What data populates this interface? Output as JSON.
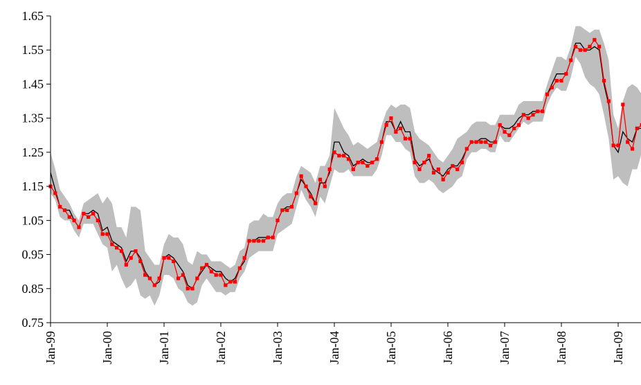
{
  "chart_data": {
    "type": "line",
    "title": "",
    "xlabel": "",
    "ylabel": "",
    "ylim": [
      0.75,
      1.65
    ],
    "yticks": [
      "1.65",
      "1.55",
      "1.45",
      "1.35",
      "1.25",
      "1.15",
      "1.05",
      "0.95",
      "0.85",
      "0.75"
    ],
    "ytick_values": [
      1.65,
      1.55,
      1.45,
      1.35,
      1.25,
      1.15,
      1.05,
      0.95,
      0.85,
      0.75
    ],
    "xticks": [
      "Jan-99",
      "Jan-00",
      "Jan-01",
      "Jan-02",
      "Jan-03",
      "Jan-04",
      "Jan-05",
      "Jan-06",
      "Jan-07",
      "Jan-08",
      "Jan-09"
    ],
    "x_start": "Jan-99",
    "x_end": "Jun-09",
    "grid": false,
    "legend": "none",
    "colors": {
      "band": "#bebebe",
      "line": "#000000",
      "marker_series": "#ff0000"
    },
    "series": [
      {
        "role": "black-line",
        "values": [
          1.19,
          1.14,
          1.09,
          1.08,
          1.08,
          1.05,
          1.03,
          1.07,
          1.07,
          1.08,
          1.07,
          1.02,
          1.03,
          0.99,
          0.98,
          0.97,
          0.93,
          0.96,
          0.96,
          0.94,
          0.9,
          0.88,
          0.86,
          0.87,
          0.94,
          0.95,
          0.94,
          0.92,
          0.9,
          0.86,
          0.85,
          0.88,
          0.9,
          0.92,
          0.91,
          0.9,
          0.9,
          0.88,
          0.87,
          0.88,
          0.91,
          0.93,
          0.99,
          0.99,
          1.0,
          1.0,
          1.0,
          1.0,
          1.05,
          1.08,
          1.09,
          1.09,
          1.13,
          1.17,
          1.15,
          1.13,
          1.1,
          1.16,
          1.16,
          1.19,
          1.28,
          1.28,
          1.25,
          1.24,
          1.21,
          1.22,
          1.23,
          1.22,
          1.22,
          1.23,
          1.28,
          1.34,
          1.34,
          1.31,
          1.34,
          1.31,
          1.31,
          1.23,
          1.21,
          1.22,
          1.23,
          1.2,
          1.19,
          1.18,
          1.2,
          1.21,
          1.21,
          1.23,
          1.26,
          1.28,
          1.28,
          1.29,
          1.29,
          1.28,
          1.28,
          1.33,
          1.32,
          1.32,
          1.33,
          1.35,
          1.36,
          1.36,
          1.37,
          1.37,
          1.37,
          1.42,
          1.45,
          1.48,
          1.48,
          1.48,
          1.52,
          1.57,
          1.57,
          1.55,
          1.55,
          1.56,
          1.55,
          1.45,
          1.39,
          1.27,
          1.25,
          1.31,
          1.29,
          1.28,
          1.32,
          1.32,
          1.38
        ]
      },
      {
        "role": "red-markers",
        "values": [
          1.15,
          1.13,
          1.09,
          1.08,
          1.06,
          1.05,
          1.03,
          1.07,
          1.06,
          1.07,
          1.05,
          1.01,
          1.01,
          0.98,
          0.97,
          0.96,
          0.92,
          0.94,
          0.96,
          0.93,
          0.89,
          0.88,
          0.86,
          0.88,
          0.94,
          0.94,
          0.93,
          0.88,
          0.89,
          0.85,
          0.85,
          0.88,
          0.91,
          0.92,
          0.9,
          0.89,
          0.89,
          0.86,
          0.87,
          0.87,
          0.91,
          0.94,
          0.99,
          0.99,
          0.99,
          0.99,
          1.0,
          1.0,
          1.05,
          1.08,
          1.08,
          1.09,
          1.13,
          1.18,
          1.15,
          1.12,
          1.1,
          1.17,
          1.15,
          1.2,
          1.25,
          1.24,
          1.24,
          1.23,
          1.2,
          1.22,
          1.22,
          1.21,
          1.22,
          1.23,
          1.28,
          1.33,
          1.35,
          1.31,
          1.32,
          1.29,
          1.29,
          1.22,
          1.2,
          1.22,
          1.24,
          1.19,
          1.2,
          1.17,
          1.19,
          1.21,
          1.2,
          1.22,
          1.26,
          1.28,
          1.28,
          1.28,
          1.28,
          1.27,
          1.28,
          1.33,
          1.31,
          1.3,
          1.32,
          1.33,
          1.36,
          1.35,
          1.36,
          1.37,
          1.37,
          1.42,
          1.44,
          1.46,
          1.46,
          1.48,
          1.52,
          1.56,
          1.55,
          1.55,
          1.56,
          1.58,
          1.56,
          1.46,
          1.4,
          1.27,
          1.27,
          1.39,
          1.28,
          1.26,
          1.32,
          1.33,
          1.42
        ]
      },
      {
        "role": "band-upper",
        "values": [
          1.25,
          1.2,
          1.14,
          1.12,
          1.1,
          1.07,
          1.05,
          1.1,
          1.11,
          1.12,
          1.13,
          1.1,
          1.12,
          1.1,
          1.03,
          1.03,
          1.0,
          1.09,
          1.09,
          1.08,
          0.96,
          0.94,
          0.92,
          0.92,
          0.98,
          1.01,
          1.0,
          1.0,
          0.98,
          0.93,
          0.92,
          0.96,
          0.95,
          0.95,
          0.93,
          0.93,
          0.93,
          0.92,
          0.91,
          0.92,
          0.96,
          0.97,
          1.04,
          1.05,
          1.05,
          1.07,
          1.06,
          1.06,
          1.1,
          1.12,
          1.13,
          1.13,
          1.18,
          1.21,
          1.2,
          1.19,
          1.16,
          1.21,
          1.21,
          1.24,
          1.38,
          1.35,
          1.32,
          1.3,
          1.27,
          1.28,
          1.27,
          1.26,
          1.27,
          1.28,
          1.33,
          1.37,
          1.39,
          1.38,
          1.39,
          1.39,
          1.38,
          1.31,
          1.29,
          1.28,
          1.27,
          1.25,
          1.23,
          1.22,
          1.24,
          1.26,
          1.29,
          1.3,
          1.31,
          1.33,
          1.34,
          1.34,
          1.34,
          1.33,
          1.33,
          1.36,
          1.36,
          1.36,
          1.36,
          1.39,
          1.4,
          1.4,
          1.4,
          1.4,
          1.4,
          1.45,
          1.49,
          1.53,
          1.53,
          1.52,
          1.56,
          1.62,
          1.62,
          1.61,
          1.6,
          1.61,
          1.61,
          1.57,
          1.52,
          1.36,
          1.32,
          1.4,
          1.44,
          1.45,
          1.44,
          1.42,
          1.44
        ]
      },
      {
        "role": "band-lower",
        "values": [
          1.13,
          1.11,
          1.06,
          1.05,
          1.05,
          1.02,
          1.0,
          1.04,
          1.04,
          1.04,
          1.01,
          0.98,
          0.97,
          0.9,
          0.92,
          0.88,
          0.85,
          0.86,
          0.88,
          0.83,
          0.82,
          0.83,
          0.8,
          0.83,
          0.89,
          0.89,
          0.88,
          0.85,
          0.84,
          0.81,
          0.8,
          0.81,
          0.86,
          0.88,
          0.86,
          0.84,
          0.84,
          0.83,
          0.84,
          0.84,
          0.88,
          0.9,
          0.94,
          0.95,
          0.96,
          0.96,
          0.96,
          0.96,
          1.01,
          1.02,
          1.03,
          1.04,
          1.09,
          1.14,
          1.11,
          1.09,
          1.06,
          1.12,
          1.1,
          1.15,
          1.2,
          1.19,
          1.19,
          1.2,
          1.18,
          1.18,
          1.18,
          1.18,
          1.18,
          1.2,
          1.24,
          1.3,
          1.3,
          1.28,
          1.28,
          1.26,
          1.25,
          1.18,
          1.16,
          1.16,
          1.17,
          1.16,
          1.14,
          1.13,
          1.14,
          1.15,
          1.17,
          1.18,
          1.23,
          1.25,
          1.25,
          1.26,
          1.26,
          1.25,
          1.25,
          1.3,
          1.28,
          1.28,
          1.3,
          1.32,
          1.34,
          1.33,
          1.34,
          1.34,
          1.34,
          1.39,
          1.42,
          1.44,
          1.43,
          1.43,
          1.47,
          1.53,
          1.51,
          1.47,
          1.45,
          1.44,
          1.42,
          1.36,
          1.29,
          1.17,
          1.18,
          1.16,
          1.15,
          1.2,
          1.2,
          1.25,
          1.25
        ]
      }
    ]
  }
}
